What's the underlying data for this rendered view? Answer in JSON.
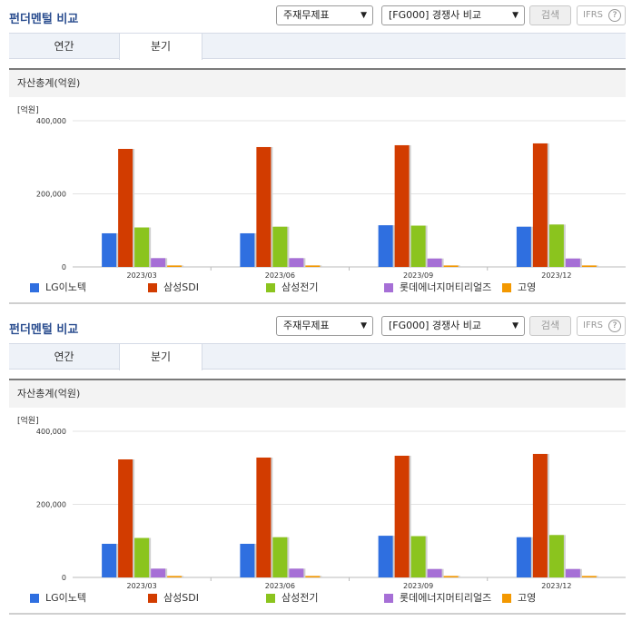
{
  "header": {
    "title": "펀더멘털 비교",
    "select_report": "주재무제표",
    "select_peer": "[FG000] 경쟁사 비교",
    "search_button": "검색",
    "ifrs_label": "IFRS",
    "help_glyph": "?"
  },
  "tabs": [
    {
      "label": "연간",
      "active": false
    },
    {
      "label": "분기",
      "active": true
    }
  ],
  "section_title": "자산총계(억원)",
  "chart_data": {
    "type": "bar",
    "unit_label": "[억원]",
    "categories": [
      "2023/03",
      "2023/06",
      "2023/09",
      "2023/12"
    ],
    "ylim": [
      0,
      400000
    ],
    "yticks": [
      0,
      200000,
      400000
    ],
    "ytick_labels": [
      "0",
      "200,000",
      "400,000"
    ],
    "grid": true,
    "legend_position": "bottom",
    "series": [
      {
        "name": "LG이노텍",
        "color": "#2f6fe0",
        "values": [
          92000,
          92000,
          114000,
          110000
        ]
      },
      {
        "name": "삼성SDI",
        "color": "#d23c00",
        "values": [
          323000,
          328000,
          333000,
          338000
        ]
      },
      {
        "name": "삼성전기",
        "color": "#8bc41e",
        "values": [
          108000,
          110000,
          113000,
          116000
        ]
      },
      {
        "name": "롯데에너지머티리얼즈",
        "color": "#a66fd6",
        "values": [
          24000,
          24000,
          23000,
          23000
        ]
      },
      {
        "name": "고영",
        "color": "#f39800",
        "values": [
          4000,
          4000,
          4000,
          4000
        ]
      }
    ]
  }
}
